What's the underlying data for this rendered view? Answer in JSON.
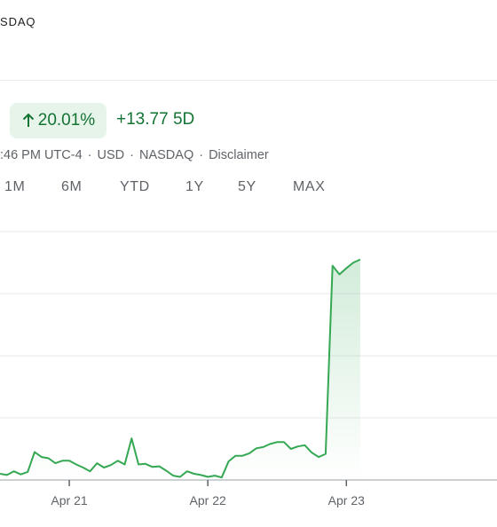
{
  "header": {
    "exchange_label": "SDAQ"
  },
  "price_change": {
    "percent": "20.01%",
    "absolute": "+13.77",
    "period": "5D",
    "direction": "up",
    "color": "#137333",
    "pill_bg": "#e6f4ea"
  },
  "meta": {
    "time": ":46 PM UTC-4",
    "currency": "USD",
    "exchange": "NASDAQ",
    "disclaimer": "Disclaimer",
    "separator": "·"
  },
  "range_tabs": [
    {
      "label": "1M"
    },
    {
      "label": "6M"
    },
    {
      "label": "YTD"
    },
    {
      "label": "1Y"
    },
    {
      "label": "5Y"
    },
    {
      "label": "MAX"
    }
  ],
  "chart_data": {
    "type": "area",
    "line_color": "#34a853",
    "tick_labels": [
      "Apr 21",
      "Apr 22",
      "Apr 23"
    ],
    "tick_positions": [
      10,
      30,
      50
    ],
    "xlim": [
      0,
      72
    ],
    "ylim": [
      0,
      4
    ],
    "grid": true,
    "points": [
      [
        0,
        0.1
      ],
      [
        1,
        0.08
      ],
      [
        2,
        0.14
      ],
      [
        3,
        0.09
      ],
      [
        4,
        0.13
      ],
      [
        5,
        0.45
      ],
      [
        6,
        0.37
      ],
      [
        7,
        0.35
      ],
      [
        8,
        0.27
      ],
      [
        9,
        0.31
      ],
      [
        10,
        0.31
      ],
      [
        11,
        0.25
      ],
      [
        12,
        0.2
      ],
      [
        13,
        0.14
      ],
      [
        14,
        0.27
      ],
      [
        15,
        0.2
      ],
      [
        16,
        0.24
      ],
      [
        17,
        0.31
      ],
      [
        18,
        0.25
      ],
      [
        19,
        0.67
      ],
      [
        20,
        0.25
      ],
      [
        21,
        0.26
      ],
      [
        22,
        0.21
      ],
      [
        23,
        0.22
      ],
      [
        24,
        0.15
      ],
      [
        25,
        0.07
      ],
      [
        26,
        0.05
      ],
      [
        27,
        0.14
      ],
      [
        28,
        0.1
      ],
      [
        29,
        0.08
      ],
      [
        30,
        0.05
      ],
      [
        31,
        0.07
      ],
      [
        32,
        0.04
      ],
      [
        33,
        0.3
      ],
      [
        34,
        0.39
      ],
      [
        35,
        0.39
      ],
      [
        36,
        0.43
      ],
      [
        37,
        0.51
      ],
      [
        38,
        0.53
      ],
      [
        39,
        0.58
      ],
      [
        40,
        0.61
      ],
      [
        41,
        0.61
      ],
      [
        42,
        0.5
      ],
      [
        43,
        0.54
      ],
      [
        44,
        0.56
      ],
      [
        45,
        0.44
      ],
      [
        46,
        0.37
      ],
      [
        47,
        0.42
      ],
      [
        48,
        3.45
      ],
      [
        49,
        3.31
      ],
      [
        50,
        3.41
      ],
      [
        51,
        3.5
      ],
      [
        52,
        3.55
      ]
    ]
  }
}
